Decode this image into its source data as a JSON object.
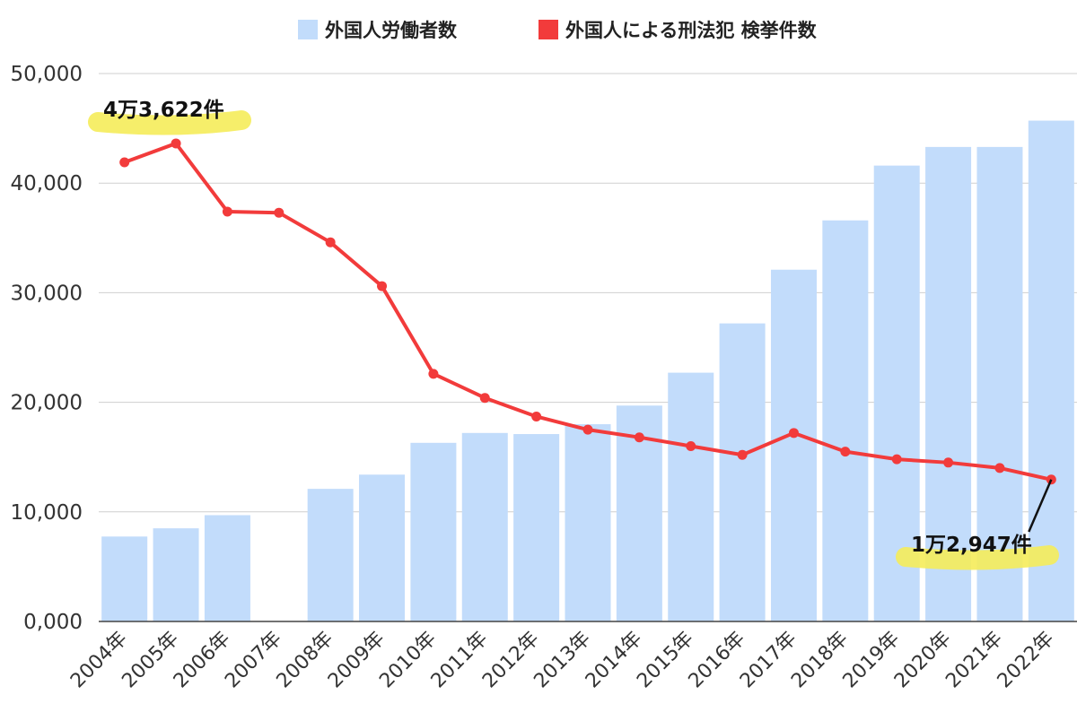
{
  "chart_data": {
    "type": "bar",
    "categories": [
      "2004年",
      "2005年",
      "2006年",
      "2007年",
      "2008年",
      "2009年",
      "2010年",
      "2011年",
      "2012年",
      "2013年",
      "2014年",
      "2015年",
      "2016年",
      "2017年",
      "2018年",
      "2019年",
      "2020年",
      "2021年",
      "2022年"
    ],
    "series": [
      {
        "name": "外国人労働者数",
        "type": "bar",
        "color": "#c2dcfb",
        "values": [
          7750,
          8500,
          9700,
          null,
          12100,
          13400,
          16300,
          17200,
          17100,
          18000,
          19700,
          22700,
          27200,
          32100,
          36600,
          41600,
          43300,
          43300,
          45700
        ]
      },
      {
        "name": "外国人による刑法犯 検挙件数",
        "type": "line",
        "color": "#f23b3b",
        "values": [
          41900,
          43622,
          37400,
          37300,
          34600,
          30600,
          22600,
          20400,
          18700,
          17500,
          16800,
          16000,
          15200,
          17200,
          15500,
          14800,
          14500,
          14000,
          12947
        ]
      }
    ],
    "y_ticks": [
      "0,000",
      "10,000",
      "20,000",
      "30,000",
      "40,000",
      "50,000"
    ],
    "ylim": [
      0,
      50000
    ],
    "grid": true,
    "legend_position": "top",
    "annotations": [
      {
        "text": "4万3,622件",
        "index": 1,
        "highlight": "#f5ec5a"
      },
      {
        "text": "1万2,947件",
        "index": 18,
        "highlight": "#f5ec5a"
      }
    ]
  }
}
